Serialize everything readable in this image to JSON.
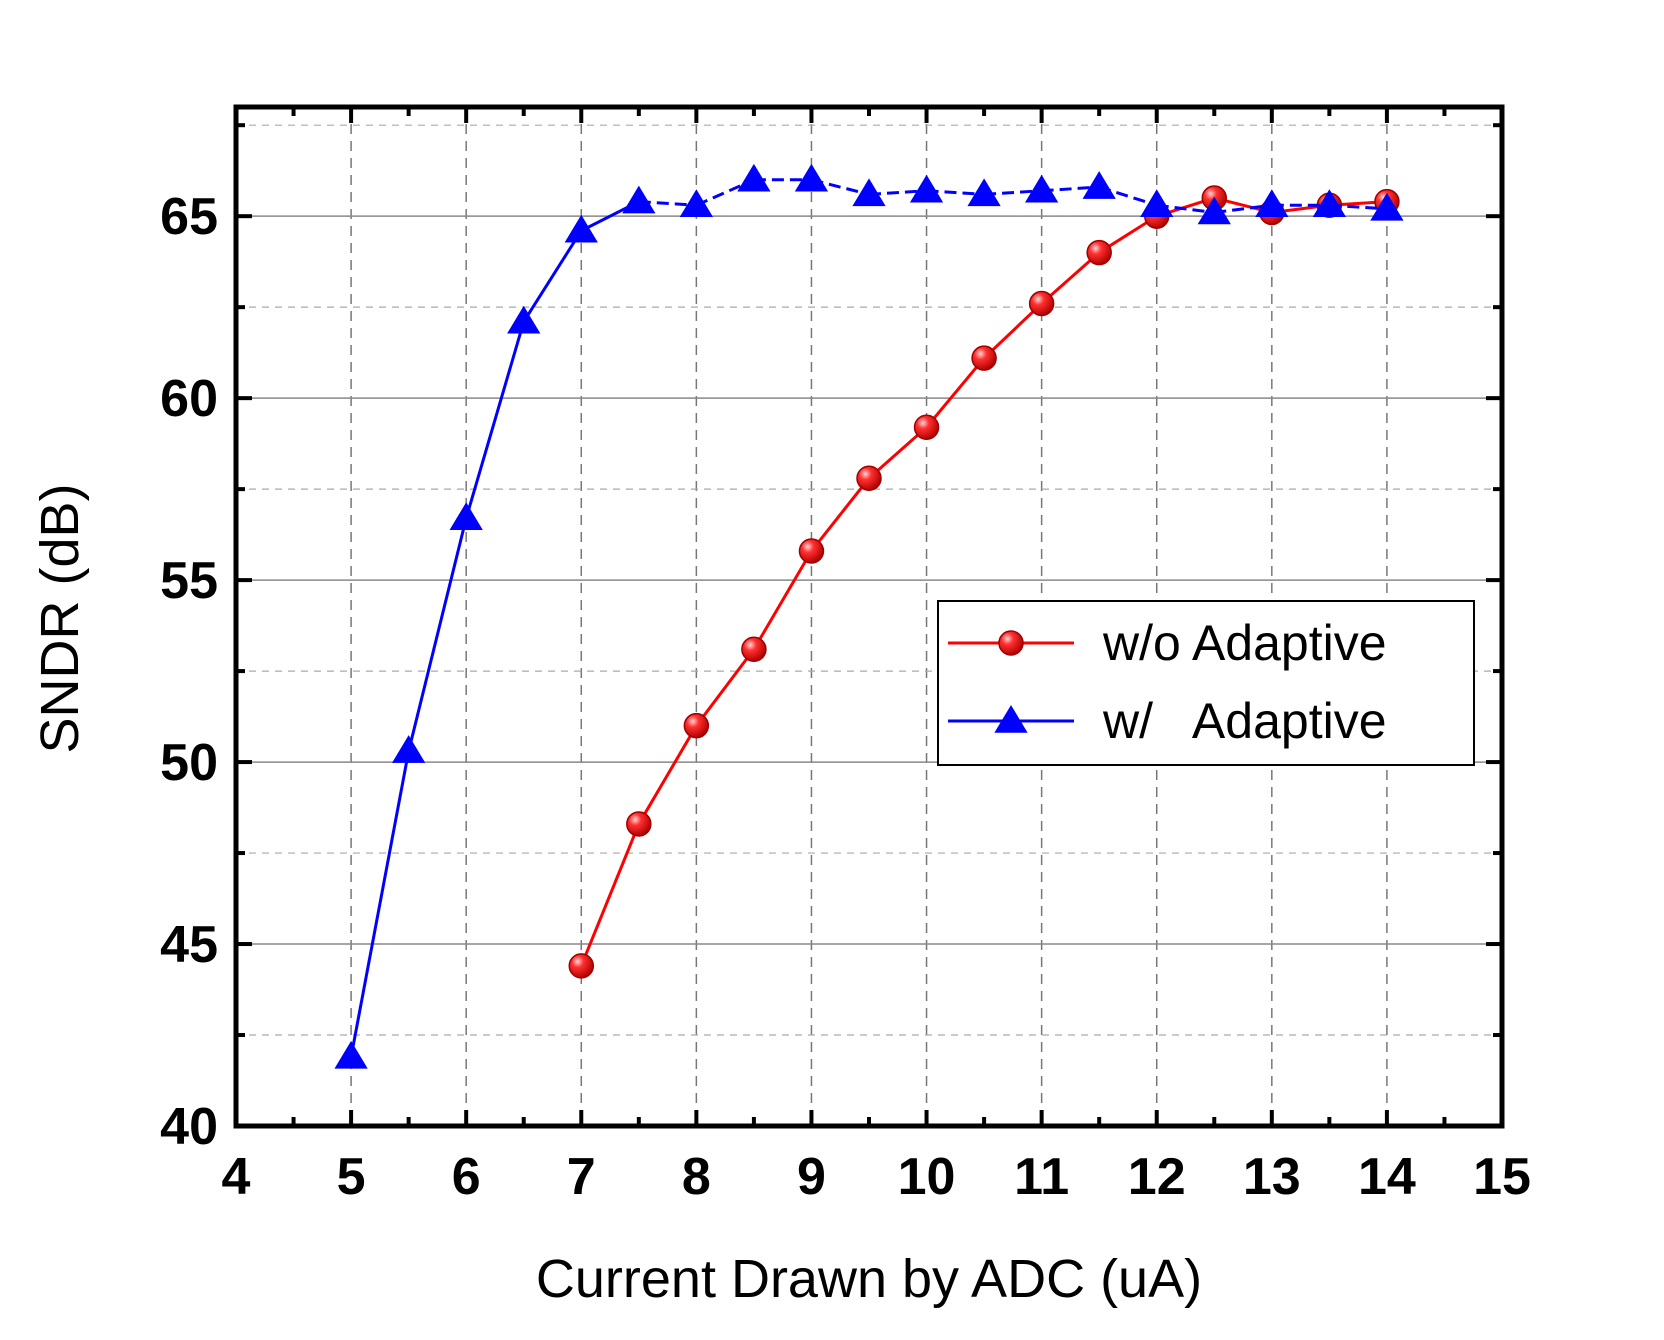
{
  "chart_data": {
    "type": "line",
    "title": "",
    "xlabel": "Current Drawn by ADC (uA)",
    "ylabel": "SNDR (dB)",
    "xlim": [
      4,
      15
    ],
    "ylim": [
      40,
      68
    ],
    "xticks": [
      4,
      5,
      6,
      7,
      8,
      9,
      10,
      11,
      12,
      13,
      14,
      15
    ],
    "yticks": [
      40,
      45,
      50,
      55,
      60,
      65
    ],
    "grid": true,
    "legend_position": "center-right",
    "series": [
      {
        "name": "w/o Adaptive",
        "color": "#ff0000",
        "marker": "circle",
        "line_style": "solid",
        "x": [
          7,
          7.5,
          8,
          8.5,
          9,
          9.5,
          10,
          10.5,
          11,
          11.5,
          12,
          12.5,
          13,
          13.5,
          14
        ],
        "y": [
          44.4,
          48.3,
          51.0,
          53.1,
          55.8,
          57.8,
          59.2,
          61.1,
          62.6,
          64.0,
          65.0,
          65.5,
          65.1,
          65.3,
          65.4
        ]
      },
      {
        "name": "w/   Adaptive",
        "color": "#0000ff",
        "marker": "triangle",
        "line_style": "solid-then-dashed",
        "x": [
          5,
          5.5,
          6,
          6.5,
          7,
          7.5,
          8,
          8.5,
          9,
          9.5,
          10,
          10.5,
          11,
          11.5,
          12,
          12.5,
          13,
          13.5,
          14
        ],
        "y": [
          41.9,
          50.3,
          56.7,
          62.1,
          64.6,
          65.4,
          65.3,
          66.0,
          66.0,
          65.6,
          65.7,
          65.6,
          65.7,
          65.8,
          65.3,
          65.1,
          65.3,
          65.3,
          65.2
        ]
      }
    ]
  }
}
